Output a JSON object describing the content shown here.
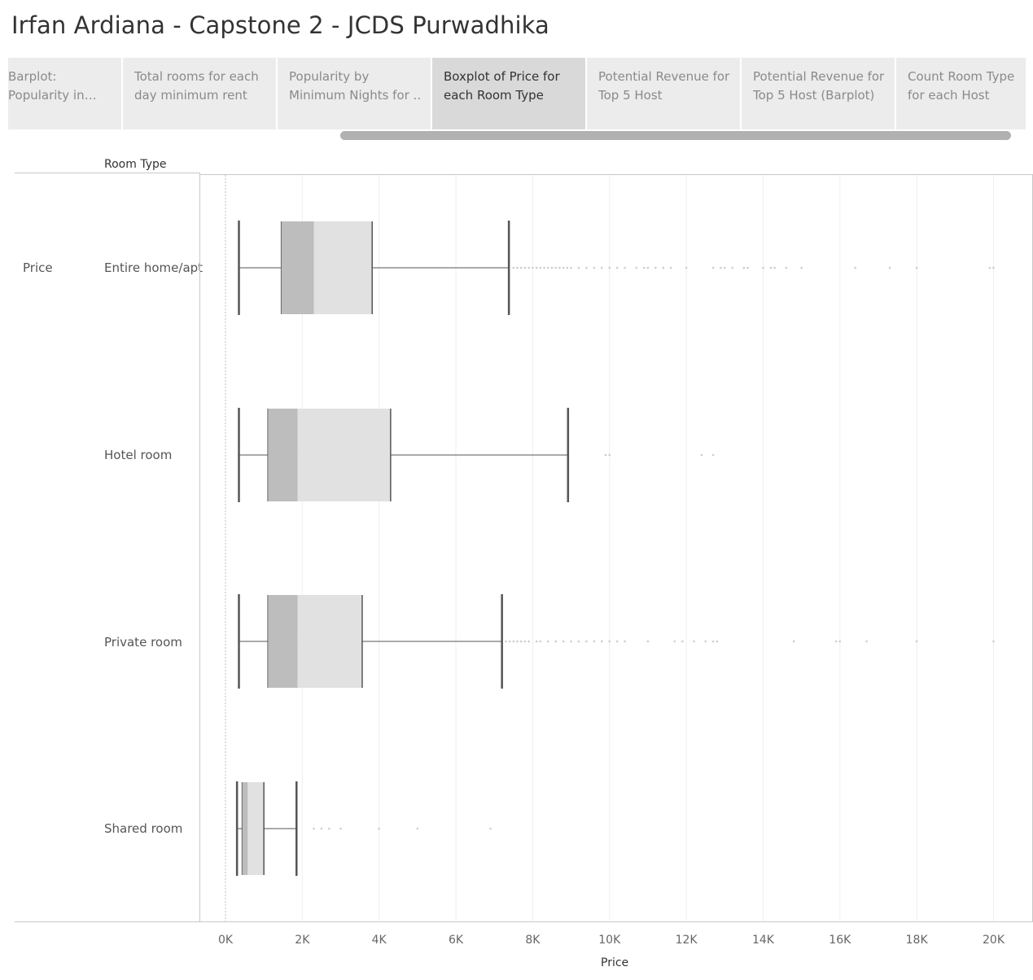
{
  "page": {
    "title": "Irfan Ardiana - Capstone 2 - JCDS Purwadhika"
  },
  "tabs": [
    {
      "label": "Barplot: Popularity in eac..",
      "active": false
    },
    {
      "label": "Total rooms for each day minimum rent",
      "active": false
    },
    {
      "label": "Popularity by Minimum Nights  for ..",
      "active": false
    },
    {
      "label": "Boxplot of Price for each Room Type",
      "active": true
    },
    {
      "label": "Potential Revenue for Top 5 Host",
      "active": false
    },
    {
      "label": "Potential Revenue for Top 5 Host (Barplot)",
      "active": false
    },
    {
      "label": "Count Room Type for each Host",
      "active": false
    }
  ],
  "colors": {
    "lower_box": "#bdbdbd",
    "upper_box": "#e1e1e1",
    "whisker": "#555555",
    "outlier": "#cccccc",
    "grid": "#efefef"
  },
  "chart_data": {
    "type": "boxplot",
    "column_header": "Room Type",
    "measure_label": "Price",
    "xlabel": "Price",
    "xlim": [
      0,
      21000
    ],
    "ticks": [
      "0K",
      "2K",
      "4K",
      "6K",
      "8K",
      "10K",
      "12K",
      "14K",
      "16K",
      "18K",
      "20K"
    ],
    "tick_values": [
      0,
      2000,
      4000,
      6000,
      8000,
      10000,
      12000,
      14000,
      16000,
      18000,
      20000
    ],
    "grid": true,
    "categories": [
      {
        "name": "Entire home/apt",
        "min": 350,
        "q1": 1450,
        "median": 2300,
        "q3": 3820,
        "max": 7380,
        "outliers": [
          7500,
          7600,
          7700,
          7800,
          7900,
          8000,
          8100,
          8200,
          8300,
          8400,
          8500,
          8600,
          8700,
          8800,
          8900,
          9000,
          9200,
          9400,
          9600,
          9800,
          10000,
          10200,
          10400,
          10700,
          10900,
          11000,
          11200,
          11400,
          11600,
          12000,
          12700,
          12900,
          13000,
          13200,
          13500,
          13600,
          14000,
          14200,
          14300,
          14600,
          15000,
          16400,
          17300,
          18000,
          19900,
          20000
        ]
      },
      {
        "name": "Hotel room",
        "min": 350,
        "q1": 1100,
        "median": 1880,
        "q3": 4300,
        "max": 8920,
        "outliers": [
          9900,
          10000,
          12400,
          12700
        ]
      },
      {
        "name": "Private room",
        "min": 350,
        "q1": 1100,
        "median": 1880,
        "q3": 3560,
        "max": 7200,
        "outliers": [
          7300,
          7400,
          7500,
          7600,
          7700,
          7800,
          7900,
          8100,
          8200,
          8400,
          8600,
          8800,
          9000,
          9200,
          9400,
          9600,
          9800,
          10000,
          10200,
          10400,
          11000,
          11700,
          11900,
          12200,
          12500,
          12700,
          12800,
          14800,
          15900,
          16000,
          16700,
          18000,
          20000
        ]
      },
      {
        "name": "Shared room",
        "min": 300,
        "q1": 430,
        "median": 580,
        "q3": 1000,
        "max": 1850,
        "outliers": [
          2300,
          2500,
          2700,
          3000,
          4000,
          5000,
          6900
        ]
      }
    ]
  }
}
